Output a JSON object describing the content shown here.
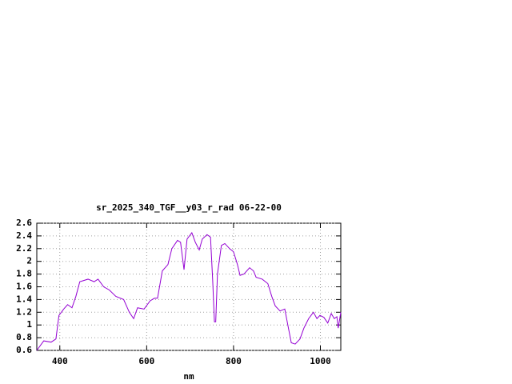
{
  "chart_data": {
    "type": "line",
    "title": "sr_2025_340_TGF__y03_r_rad 06-22-00",
    "x_label": "nm",
    "x": [
      347,
      363,
      380,
      391,
      398,
      409,
      418,
      428,
      437,
      446,
      465,
      479,
      488,
      501,
      514,
      529,
      547,
      560,
      570,
      579,
      594,
      608,
      618,
      625,
      636,
      649,
      658,
      671,
      678,
      686,
      693,
      704,
      712,
      721,
      728,
      739,
      747,
      752,
      756,
      759,
      763,
      772,
      780,
      791,
      800,
      809,
      815,
      824,
      837,
      846,
      852,
      866,
      879,
      888,
      896,
      907,
      918,
      925,
      933,
      942,
      953,
      962,
      973,
      984,
      992,
      999,
      1008,
      1017,
      1025,
      1032,
      1038,
      1041,
      1047
    ],
    "series": [
      {
        "color": "#9400d3",
        "values": [
          0.6,
          0.75,
          0.73,
          0.78,
          1.15,
          1.25,
          1.32,
          1.27,
          1.45,
          1.68,
          1.72,
          1.68,
          1.72,
          1.6,
          1.55,
          1.45,
          1.4,
          1.2,
          1.1,
          1.27,
          1.25,
          1.38,
          1.42,
          1.42,
          1.85,
          1.95,
          2.2,
          2.33,
          2.3,
          1.87,
          2.35,
          2.45,
          2.3,
          2.18,
          2.35,
          2.42,
          2.38,
          1.7,
          1.05,
          1.05,
          1.8,
          2.25,
          2.28,
          2.2,
          2.15,
          1.95,
          1.78,
          1.8,
          1.9,
          1.85,
          1.75,
          1.72,
          1.65,
          1.45,
          1.3,
          1.22,
          1.25,
          1.0,
          0.72,
          0.7,
          0.78,
          0.95,
          1.1,
          1.2,
          1.1,
          1.15,
          1.12,
          1.03,
          1.18,
          1.1,
          1.13,
          0.95,
          1.2
        ]
      }
    ],
    "xlim": [
      347,
      1047
    ],
    "xticks": [
      400,
      600,
      800,
      1000
    ],
    "ylim": [
      0.6,
      2.6
    ],
    "yticks": [
      0.6,
      0.8,
      1,
      1.2,
      1.4,
      1.6,
      1.8,
      2,
      2.2,
      2.4,
      2.6
    ],
    "grid": true
  }
}
